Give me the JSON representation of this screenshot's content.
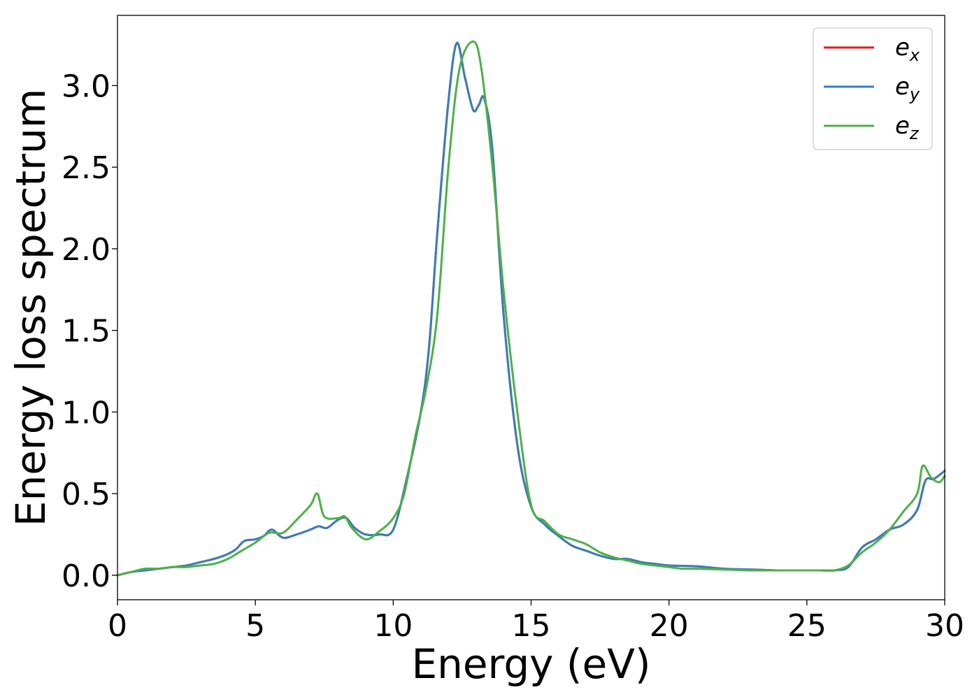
{
  "chart_data": {
    "type": "line",
    "title": "",
    "xlabel": "Energy (eV)",
    "ylabel": "Energy loss spectrum",
    "xlim": [
      0,
      30
    ],
    "ylim": [
      -0.15,
      3.43
    ],
    "xticks": [
      0,
      5,
      10,
      15,
      20,
      25,
      30
    ],
    "xtick_labels": [
      "0",
      "5",
      "10",
      "15",
      "20",
      "25",
      "30"
    ],
    "yticks": [
      0.0,
      0.5,
      1.0,
      1.5,
      2.0,
      2.5,
      3.0
    ],
    "ytick_labels": [
      "0.0",
      "0.5",
      "1.0",
      "1.5",
      "2.0",
      "2.5",
      "3.0"
    ],
    "grid": false,
    "legend_position": "top-right",
    "series": [
      {
        "name": "e_x",
        "label_base": "e",
        "label_sub": "x",
        "color": "#e41a1c",
        "x": [
          0,
          0.5,
          1,
          1.5,
          2,
          2.5,
          3,
          3.5,
          4,
          4.3,
          4.6,
          5,
          5.3,
          5.6,
          6,
          6.5,
          7,
          7.3,
          7.6,
          8,
          8.3,
          8.6,
          9,
          9.5,
          10,
          10.5,
          11,
          11.3,
          11.6,
          12,
          12.3,
          12.6,
          12.9,
          13.1,
          13.3,
          13.6,
          14,
          14.5,
          15,
          15.5,
          16,
          16.5,
          17,
          17.5,
          18,
          18.5,
          19,
          19.5,
          20,
          21,
          22,
          23,
          24,
          25,
          25.5,
          26,
          26.5,
          27,
          27.5,
          28,
          28.5,
          29,
          29.3,
          29.6,
          30
        ],
        "y": [
          0,
          0.02,
          0.03,
          0.04,
          0.05,
          0.06,
          0.08,
          0.1,
          0.13,
          0.16,
          0.21,
          0.22,
          0.24,
          0.28,
          0.23,
          0.25,
          0.28,
          0.3,
          0.29,
          0.34,
          0.35,
          0.29,
          0.25,
          0.25,
          0.28,
          0.6,
          1.0,
          1.4,
          2.1,
          2.9,
          3.26,
          3.05,
          2.85,
          2.88,
          2.92,
          2.6,
          1.6,
          0.8,
          0.42,
          0.31,
          0.24,
          0.18,
          0.15,
          0.12,
          0.1,
          0.1,
          0.08,
          0.07,
          0.06,
          0.055,
          0.04,
          0.035,
          0.03,
          0.03,
          0.03,
          0.03,
          0.05,
          0.17,
          0.22,
          0.28,
          0.31,
          0.4,
          0.58,
          0.59,
          0.64
        ]
      },
      {
        "name": "e_y",
        "label_base": "e",
        "label_sub": "y",
        "color": "#377eb8",
        "x": [
          0,
          0.5,
          1,
          1.5,
          2,
          2.5,
          3,
          3.5,
          4,
          4.3,
          4.6,
          5,
          5.3,
          5.6,
          6,
          6.5,
          7,
          7.3,
          7.6,
          8,
          8.3,
          8.6,
          9,
          9.5,
          10,
          10.5,
          11,
          11.3,
          11.6,
          12,
          12.3,
          12.6,
          12.9,
          13.1,
          13.3,
          13.6,
          14,
          14.5,
          15,
          15.5,
          16,
          16.5,
          17,
          17.5,
          18,
          18.5,
          19,
          19.5,
          20,
          21,
          22,
          23,
          24,
          25,
          25.5,
          26,
          26.5,
          27,
          27.5,
          28,
          28.5,
          29,
          29.3,
          29.6,
          30
        ],
        "y": [
          0,
          0.02,
          0.03,
          0.04,
          0.05,
          0.06,
          0.08,
          0.1,
          0.13,
          0.16,
          0.21,
          0.22,
          0.24,
          0.28,
          0.23,
          0.25,
          0.28,
          0.3,
          0.29,
          0.34,
          0.35,
          0.29,
          0.25,
          0.25,
          0.28,
          0.6,
          1.0,
          1.4,
          2.1,
          2.9,
          3.26,
          3.05,
          2.85,
          2.88,
          2.92,
          2.6,
          1.6,
          0.8,
          0.42,
          0.31,
          0.24,
          0.18,
          0.15,
          0.12,
          0.1,
          0.1,
          0.08,
          0.07,
          0.06,
          0.055,
          0.04,
          0.035,
          0.03,
          0.03,
          0.03,
          0.03,
          0.05,
          0.17,
          0.22,
          0.28,
          0.31,
          0.4,
          0.58,
          0.59,
          0.64
        ]
      },
      {
        "name": "e_z",
        "label_base": "e",
        "label_sub": "z",
        "color": "#4daf4a",
        "x": [
          0,
          0.5,
          1,
          1.5,
          2,
          2.5,
          3,
          3.5,
          4,
          4.5,
          5,
          5.5,
          6,
          6.5,
          7,
          7.25,
          7.5,
          8,
          8.25,
          8.5,
          9,
          9.5,
          10,
          10.4,
          10.8,
          11.2,
          11.6,
          12,
          12.4,
          12.9,
          13.2,
          13.6,
          14,
          14.5,
          15,
          15.5,
          16,
          16.5,
          17,
          17.5,
          18,
          18.5,
          19,
          19.5,
          20,
          20.5,
          21,
          22,
          23,
          24,
          25,
          25.5,
          26,
          26.5,
          27,
          27.5,
          28,
          28.5,
          29,
          29.2,
          29.5,
          29.8,
          30
        ],
        "y": [
          0,
          0.02,
          0.04,
          0.04,
          0.05,
          0.05,
          0.06,
          0.07,
          0.1,
          0.15,
          0.2,
          0.26,
          0.26,
          0.34,
          0.43,
          0.5,
          0.36,
          0.35,
          0.36,
          0.29,
          0.22,
          0.27,
          0.35,
          0.5,
          0.85,
          1.15,
          1.6,
          2.5,
          3.1,
          3.27,
          3.1,
          2.5,
          1.75,
          1.0,
          0.43,
          0.33,
          0.25,
          0.22,
          0.19,
          0.14,
          0.11,
          0.09,
          0.07,
          0.06,
          0.05,
          0.04,
          0.04,
          0.035,
          0.03,
          0.03,
          0.03,
          0.03,
          0.03,
          0.06,
          0.14,
          0.2,
          0.28,
          0.39,
          0.5,
          0.67,
          0.6,
          0.57,
          0.61
        ]
      }
    ]
  }
}
